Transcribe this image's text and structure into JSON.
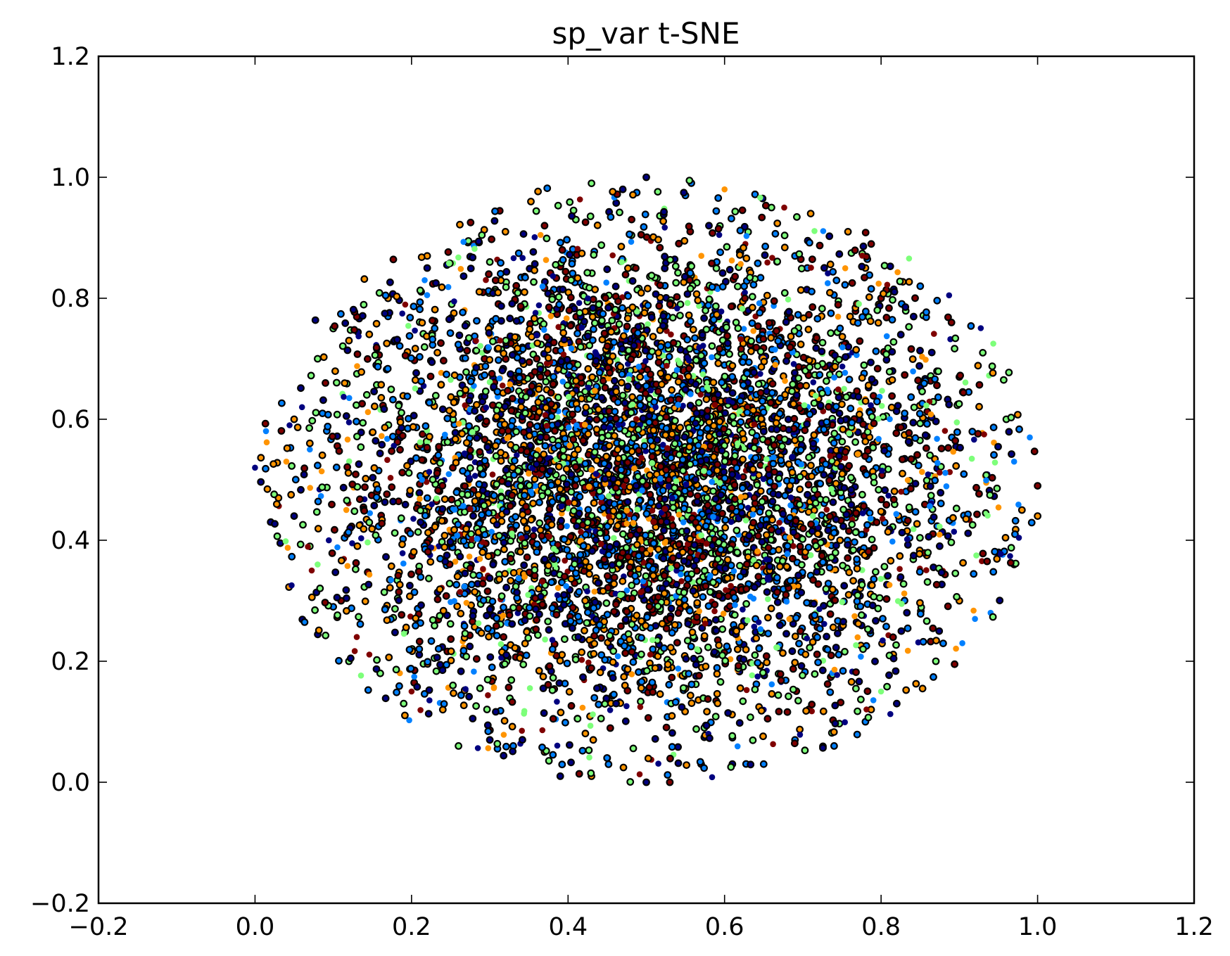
{
  "chart_data": {
    "type": "scatter",
    "title": "sp_var t-SNE",
    "xlabel": "",
    "ylabel": "",
    "xlim": [
      -0.2,
      1.2
    ],
    "ylim": [
      -0.2,
      1.2
    ],
    "xticks": [
      -0.2,
      0.0,
      0.2,
      0.4,
      0.6,
      0.8,
      1.0,
      1.2
    ],
    "xtick_labels": [
      "−0.2",
      "0.0",
      "0.2",
      "0.4",
      "0.6",
      "0.8",
      "1.0",
      "1.2"
    ],
    "yticks": [
      -0.2,
      0.0,
      0.2,
      0.4,
      0.6,
      0.8,
      1.0,
      1.2
    ],
    "ytick_labels": [
      "−0.2",
      "0.0",
      "0.2",
      "0.4",
      "0.6",
      "0.8",
      "1.0",
      "1.2"
    ],
    "grid": false,
    "legend": null,
    "point_style": "filled circle with black edge",
    "series_colors": [
      "#00007f",
      "#0080ff",
      "#7dff7a",
      "#ff9400",
      "#7f0000"
    ],
    "point_cloud": {
      "shape": "ellipse",
      "x_range": [
        0.0,
        1.0
      ],
      "y_range": [
        0.0,
        1.0
      ],
      "center": [
        0.5,
        0.5
      ],
      "approx_count": 6000
    },
    "points": [
      [
        0.0,
        0.52
      ],
      [
        0.03,
        0.47
      ],
      [
        0.02,
        0.43
      ],
      [
        0.05,
        0.6
      ],
      [
        0.07,
        0.55
      ],
      [
        0.1,
        0.75
      ],
      [
        0.08,
        0.7
      ],
      [
        0.12,
        0.2
      ],
      [
        0.11,
        0.3
      ],
      [
        0.17,
        0.77
      ],
      [
        0.22,
        0.85
      ],
      [
        0.19,
        0.13
      ],
      [
        0.26,
        0.06
      ],
      [
        0.3,
        0.07
      ],
      [
        0.37,
        0.05
      ],
      [
        0.39,
        0.01
      ],
      [
        0.43,
        0.01
      ],
      [
        0.5,
        0.0
      ],
      [
        0.53,
        0.0
      ],
      [
        0.61,
        0.03
      ],
      [
        0.65,
        0.03
      ],
      [
        0.74,
        0.06
      ],
      [
        0.78,
        0.1
      ],
      [
        0.82,
        0.13
      ],
      [
        0.92,
        0.27
      ],
      [
        0.94,
        0.28
      ],
      [
        0.97,
        0.36
      ],
      [
        0.98,
        0.45
      ],
      [
        1.0,
        0.49
      ],
      [
        1.0,
        0.44
      ],
      [
        0.99,
        0.57
      ],
      [
        0.97,
        0.53
      ],
      [
        0.93,
        0.71
      ],
      [
        0.89,
        0.76
      ],
      [
        0.85,
        0.82
      ],
      [
        0.78,
        0.85
      ],
      [
        0.71,
        0.94
      ],
      [
        0.66,
        0.95
      ],
      [
        0.6,
        0.98
      ],
      [
        0.55,
        0.97
      ],
      [
        0.5,
        1.0
      ],
      [
        0.47,
        0.98
      ],
      [
        0.43,
        0.99
      ],
      [
        0.37,
        0.92
      ],
      [
        0.32,
        0.91
      ],
      [
        0.28,
        0.89
      ],
      [
        0.22,
        0.87
      ],
      [
        0.17,
        0.8
      ],
      [
        0.12,
        0.73
      ],
      [
        0.09,
        0.66
      ],
      [
        0.06,
        0.62
      ],
      [
        0.04,
        0.53
      ],
      [
        0.05,
        0.44
      ],
      [
        0.07,
        0.39
      ],
      [
        0.08,
        0.36
      ],
      [
        0.1,
        0.29
      ],
      [
        0.13,
        0.24
      ],
      [
        0.16,
        0.18
      ],
      [
        0.2,
        0.15
      ],
      [
        0.24,
        0.12
      ],
      [
        0.33,
        0.06
      ],
      [
        0.45,
        0.04
      ],
      [
        0.57,
        0.03
      ],
      [
        0.69,
        0.07
      ],
      [
        0.8,
        0.15
      ],
      [
        0.87,
        0.2
      ],
      [
        0.9,
        0.3
      ],
      [
        0.95,
        0.38
      ],
      [
        0.96,
        0.6
      ],
      [
        0.9,
        0.67
      ],
      [
        0.8,
        0.8
      ],
      [
        0.69,
        0.87
      ],
      [
        0.58,
        0.92
      ],
      [
        0.41,
        0.93
      ],
      [
        0.3,
        0.86
      ]
    ]
  }
}
